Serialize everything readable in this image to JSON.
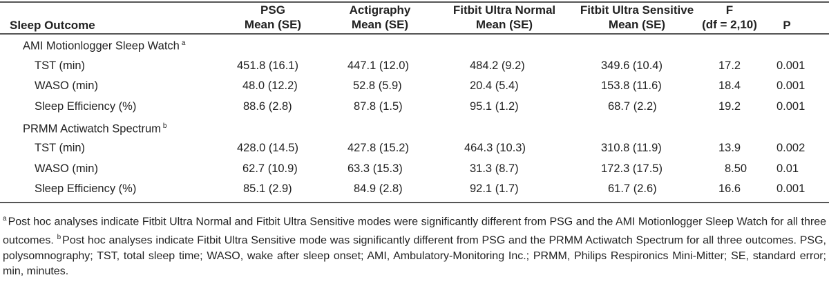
{
  "table": {
    "headers": {
      "outcome": "Sleep Outcome",
      "psg": [
        "PSG",
        "Mean (SE)"
      ],
      "actigraphy": [
        "Actigraphy",
        "Mean (SE)"
      ],
      "fitbit_normal": [
        "Fitbit Ultra Normal",
        "Mean (SE)"
      ],
      "fitbit_sensitive": [
        "Fitbit Ultra Sensitive",
        "Mean (SE)"
      ],
      "f": [
        "F",
        "(df = 2,10)"
      ],
      "p": "P"
    },
    "groups": [
      {
        "name": "AMI Motionlogger Sleep Watch",
        "marker": "a",
        "rows": [
          {
            "outcome": "TST (min)",
            "psg": "451.8 (16.1)",
            "actigraphy": "447.1 (12.0)",
            "fitbit_normal": "484.2 (9.2)",
            "fitbit_sensitive": "349.6 (10.4)",
            "f": "17.2",
            "p": "0.001"
          },
          {
            "outcome": "WASO (min)",
            "psg": "48.0 (12.2)",
            "actigraphy": "52.8 (5.9)",
            "fitbit_normal": "20.4 (5.4)",
            "fitbit_sensitive": "153.8 (11.6)",
            "f": "18.4",
            "p": "0.001"
          },
          {
            "outcome": "Sleep Efficiency (%)",
            "psg": "88.6 (2.8)",
            "actigraphy": "87.8 (1.5)",
            "fitbit_normal": "95.1 (1.2)",
            "fitbit_sensitive": "68.7 (2.2)",
            "f": "19.2",
            "p": "0.001"
          }
        ]
      },
      {
        "name": "PRMM Actiwatch Spectrum",
        "marker": "b",
        "rows": [
          {
            "outcome": "TST (min)",
            "psg": "428.0 (14.5)",
            "actigraphy": "427.8 (15.2)",
            "fitbit_normal": "464.3 (10.3)",
            "fitbit_sensitive": "310.8 (11.9)",
            "f": "13.9",
            "p": "0.002"
          },
          {
            "outcome": "WASO (min)",
            "psg": "62.7 (10.9)",
            "actigraphy": "63.3 (15.3)",
            "fitbit_normal": "31.3 (8.7)",
            "fitbit_sensitive": "172.3 (17.5)",
            "f": "8.50",
            "p": "0.01"
          },
          {
            "outcome": "Sleep Efficiency (%)",
            "psg": "85.1 (2.9)",
            "actigraphy": "84.9 (2.8)",
            "fitbit_normal": "92.1 (1.7)",
            "fitbit_sensitive": "61.7 (2.6)",
            "f": "16.6",
            "p": "0.001"
          }
        ]
      }
    ]
  },
  "footnote": {
    "a_marker": "a",
    "a_text": "Post hoc analyses indicate Fitbit Ultra Normal and Fitbit Ultra Sensitive modes were significantly different from PSG and the AMI Motionlogger Sleep Watch for all three outcomes.",
    "b_marker": "b",
    "b_text": "Post hoc analyses indicate Fitbit Ultra Sensitive mode was significantly different from PSG and the PRMM Actiwatch Spectrum for all three outcomes. PSG, polysomnography; TST, total sleep time; WASO, wake after sleep onset; AMI, Ambulatory-Monitoring Inc.; PRMM, Philips Respironics Mini-Mitter; SE, standard error; min, minutes."
  }
}
